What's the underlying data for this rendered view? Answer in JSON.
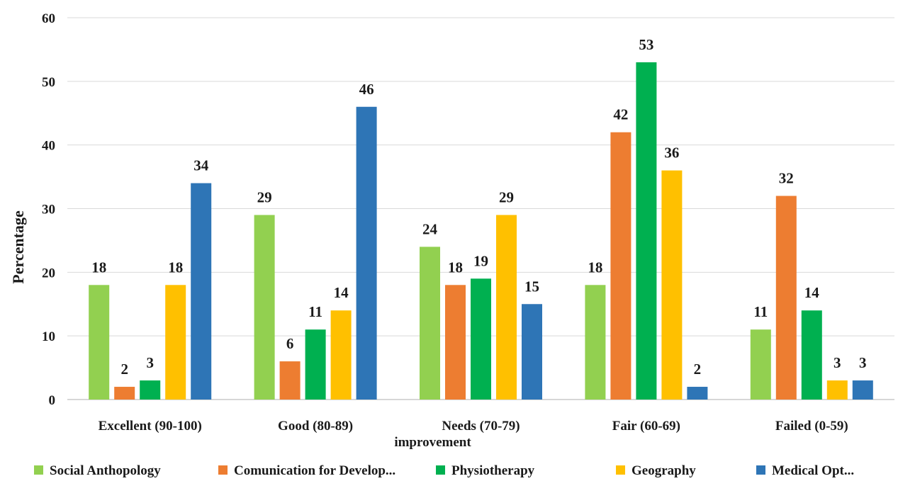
{
  "chart_data": {
    "type": "bar",
    "title": "",
    "xlabel": "",
    "ylabel": "Percentage",
    "ylim": [
      0,
      60
    ],
    "yticks": [
      0,
      10,
      20,
      30,
      40,
      50,
      60
    ],
    "grid": true,
    "legend_position": "bottom",
    "categories": [
      "Excellent (90-100)",
      "Good (80-89)",
      "Needs (70-79)",
      "Fair (60-69)",
      "Failed (0-59)"
    ],
    "category_sublabels": [
      "",
      "",
      "improvement",
      "",
      ""
    ],
    "series": [
      {
        "name": "Social Anthopology",
        "color": "#92d050",
        "values": [
          18,
          29,
          24,
          18,
          11
        ]
      },
      {
        "name": "Comunication for Develop...",
        "color": "#ed7d31",
        "values": [
          2,
          6,
          18,
          42,
          32
        ]
      },
      {
        "name": "Physiotherapy",
        "color": "#00b050",
        "values": [
          3,
          11,
          19,
          53,
          14
        ]
      },
      {
        "name": "Geography",
        "color": "#ffc000",
        "values": [
          18,
          14,
          29,
          36,
          3
        ]
      },
      {
        "name": "Medical Opt...",
        "color": "#2e75b6",
        "values": [
          34,
          46,
          15,
          2,
          3
        ]
      }
    ]
  }
}
